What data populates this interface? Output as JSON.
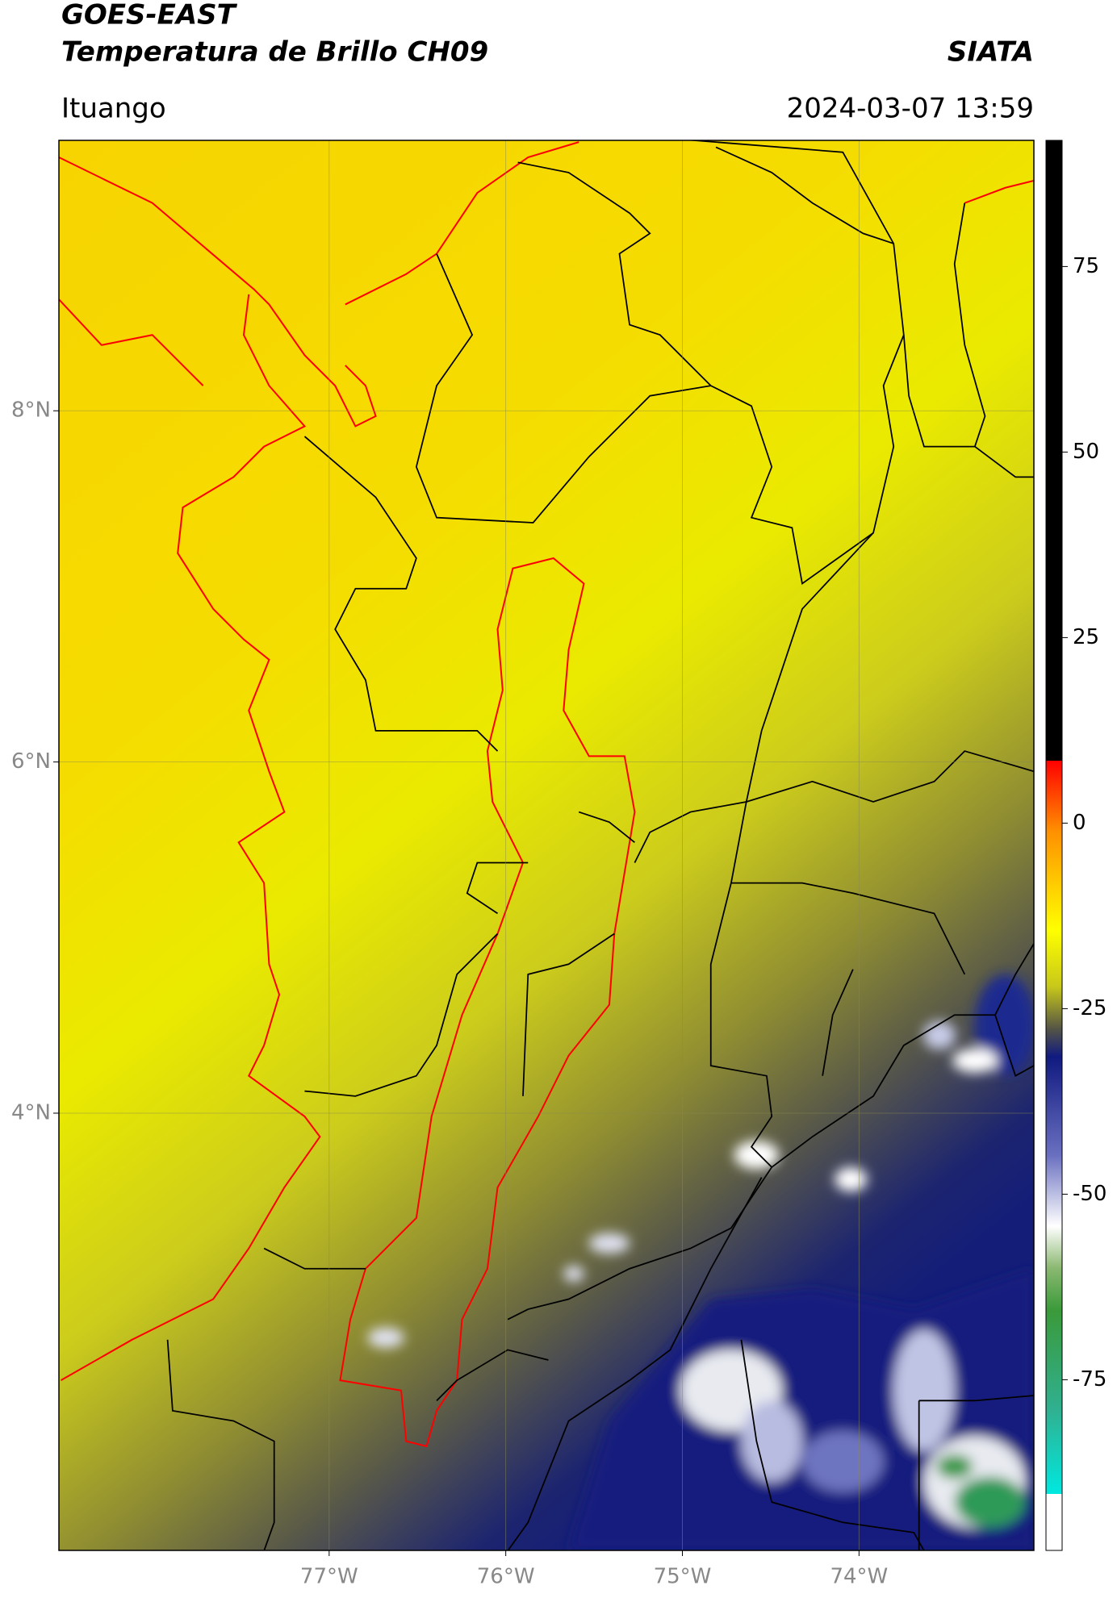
{
  "header": {
    "title": "GOES-EAST",
    "subtitle": "Temperatura de Brillo CH09",
    "source": "SIATA",
    "location": "Ituango",
    "datetime": "2024-03-07 13:59"
  },
  "map": {
    "xlim": [
      -78.53,
      -73.01
    ],
    "ylim": [
      1.51,
      9.54
    ],
    "xticks": [
      {
        "value": -77,
        "label": "77°W"
      },
      {
        "value": -76,
        "label": "76°W"
      },
      {
        "value": -75,
        "label": "75°W"
      },
      {
        "value": -74,
        "label": "74°W"
      }
    ],
    "yticks": [
      {
        "value": 8,
        "label": "8°N"
      },
      {
        "value": 6,
        "label": "6°N"
      },
      {
        "value": 4,
        "label": "4°N"
      }
    ],
    "grid": true
  },
  "colorbar": {
    "lim": [
      -98,
      92
    ],
    "ticks": [
      75,
      50,
      25,
      0,
      -25,
      -50,
      -75
    ]
  }
}
